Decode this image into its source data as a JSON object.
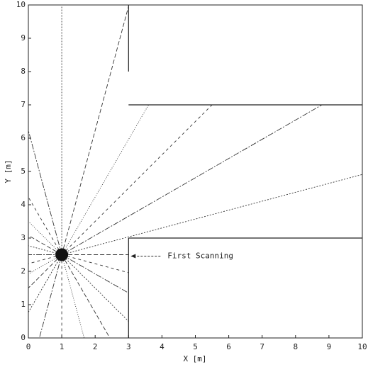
{
  "chart_data": {
    "type": "rays",
    "xlabel": "X [m]",
    "ylabel": "Y [m]",
    "annotation": "First Scanning",
    "xlim": [
      0,
      10
    ],
    "ylim": [
      0,
      10
    ],
    "xticks": [
      0,
      1,
      2,
      3,
      4,
      5,
      6,
      7,
      8,
      9,
      10
    ],
    "yticks": [
      0,
      1,
      2,
      3,
      4,
      5,
      6,
      7,
      8,
      9,
      10
    ],
    "source": {
      "x": [
        1
      ],
      "y": [
        2.5
      ]
    },
    "walls": {
      "x": [
        3,
        3,
        null,
        3,
        10,
        null,
        3,
        10,
        null,
        3,
        3
      ],
      "y": [
        10,
        8,
        null,
        7,
        7,
        null,
        3,
        3,
        null,
        3,
        0
      ]
    },
    "rays": {
      "x": [
        3,
        10,
        8.79,
        5.5,
        3.6,
        3,
        1,
        0,
        0,
        0,
        0,
        0,
        0,
        0,
        0,
        0,
        0,
        0.33,
        1,
        1.67,
        2.44,
        3,
        3,
        3
      ],
      "y": [
        2.5,
        4.91,
        7,
        7,
        7,
        9.96,
        10,
        6.23,
        4.23,
        3.5,
        3.08,
        2.77,
        2.5,
        2.23,
        1.92,
        1.5,
        0.77,
        0,
        0,
        0,
        0,
        0.5,
        1.35,
        1.96
      ]
    }
  }
}
